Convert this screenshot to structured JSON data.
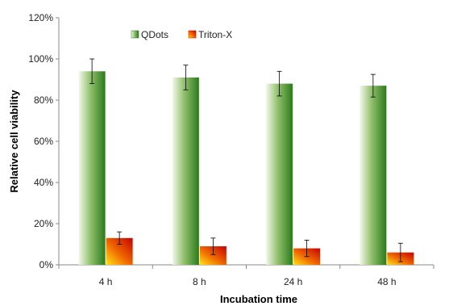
{
  "chart_data": {
    "type": "bar",
    "xlabel": "Incubation time",
    "ylabel": "Relative cell viability",
    "categories": [
      "4 h",
      "8 h",
      "24 h",
      "48 h"
    ],
    "ylim": [
      0,
      120
    ],
    "yticks": [
      0,
      20,
      40,
      60,
      80,
      100,
      120
    ],
    "ytick_suffix": "%",
    "legend_position": "top-center",
    "grid": false,
    "series": [
      {
        "name": "QDots",
        "values": [
          94,
          91,
          88,
          87
        ],
        "errors": [
          6,
          6,
          6,
          5.5
        ],
        "color": "#2e7d1f"
      },
      {
        "name": "Triton-X",
        "values": [
          13,
          9,
          8,
          6
        ],
        "errors": [
          3,
          4,
          4,
          4.5
        ],
        "color": "#d41a00"
      }
    ]
  }
}
